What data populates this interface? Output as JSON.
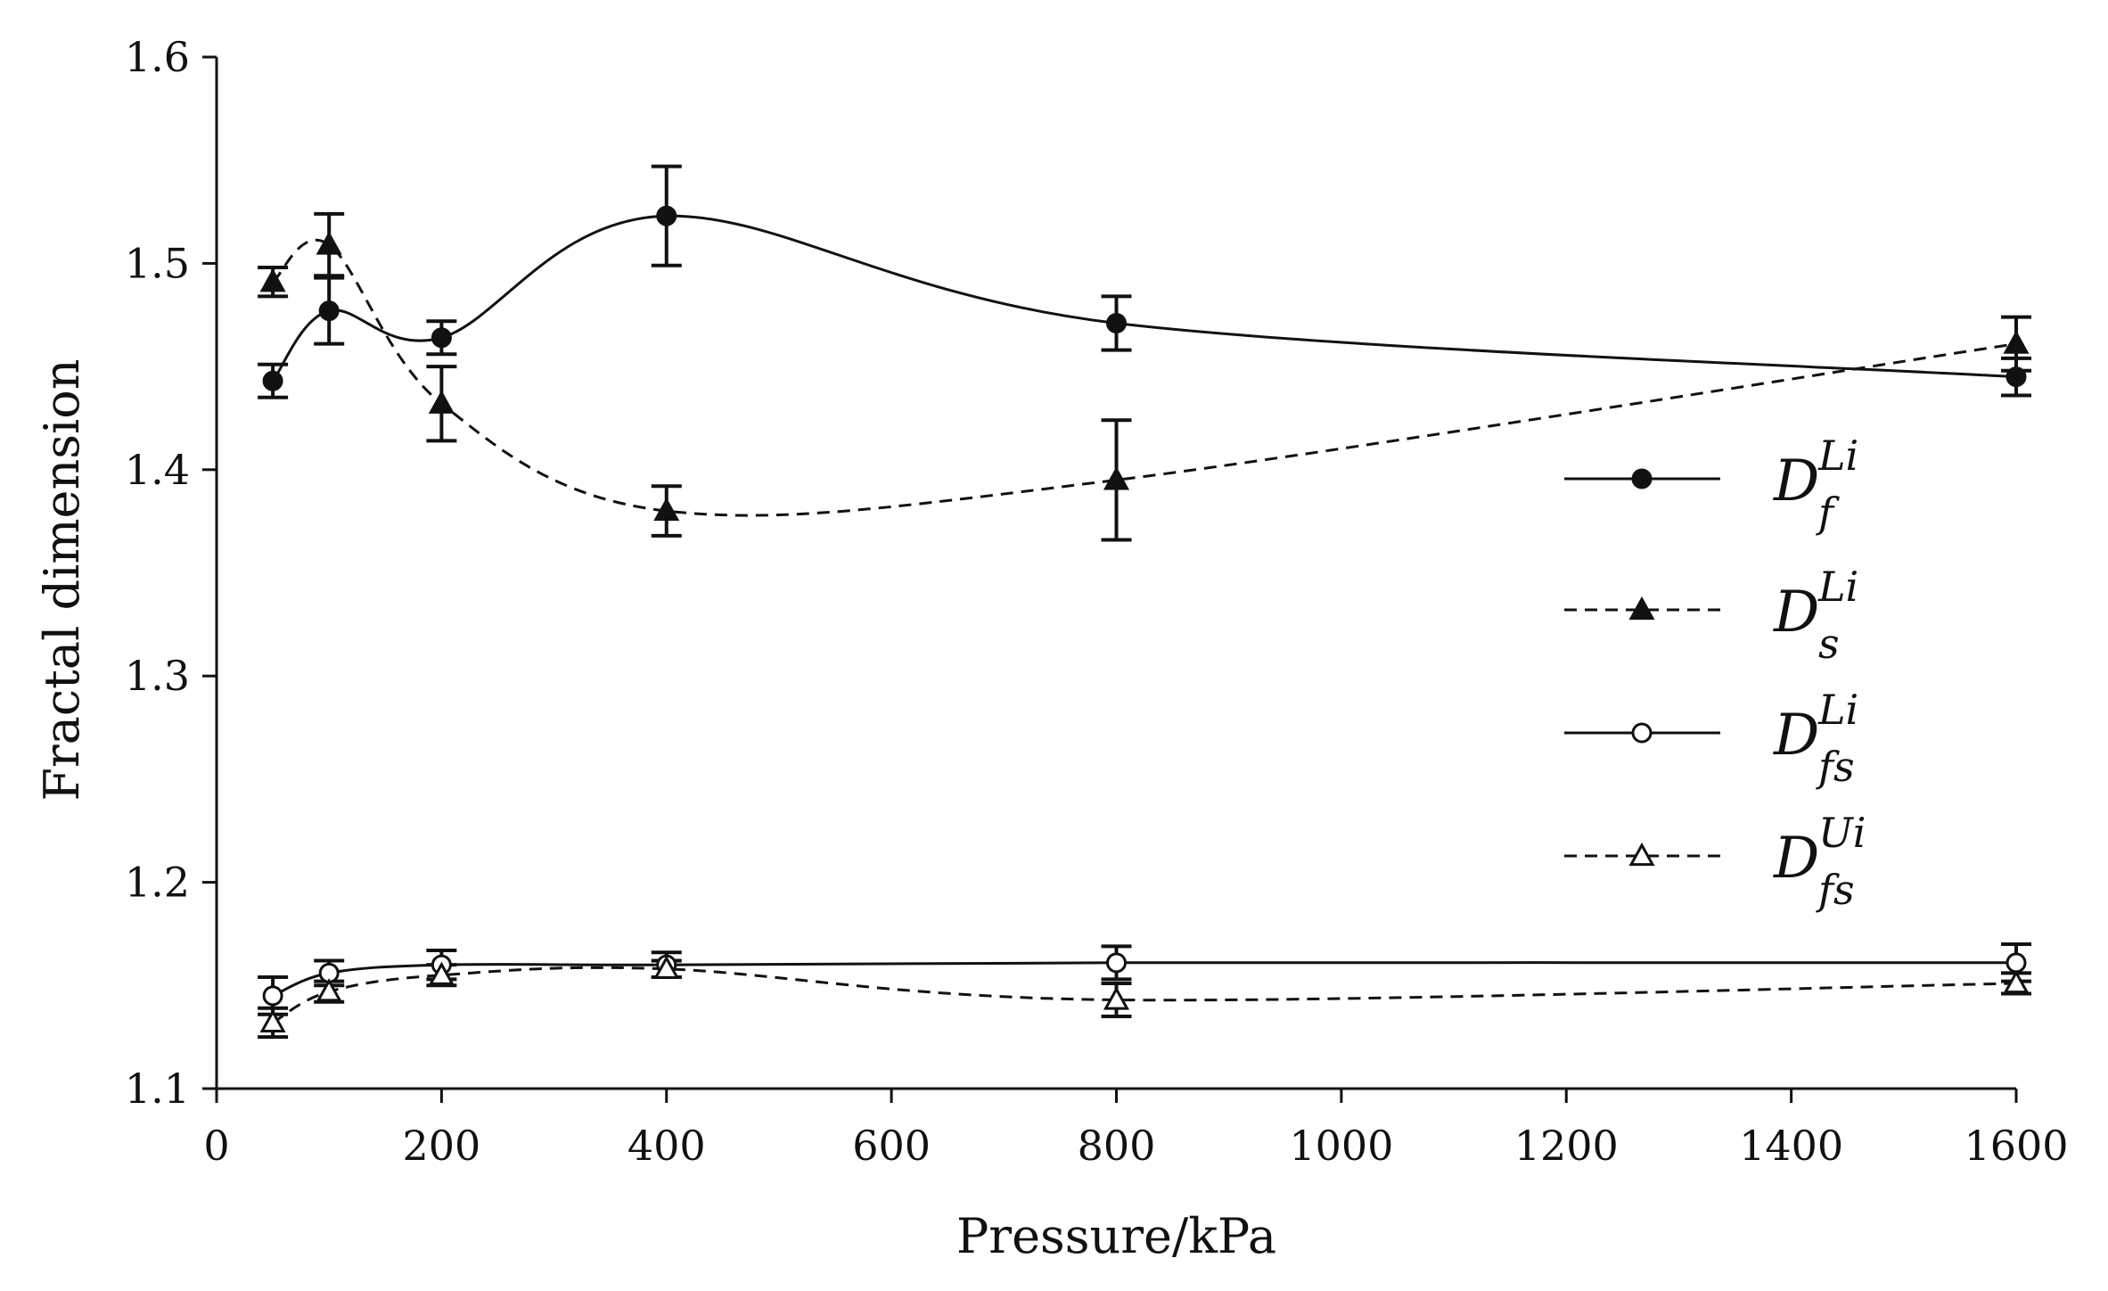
{
  "chart_data": {
    "type": "line",
    "title": "",
    "xlabel": "Pressure/kPa",
    "ylabel": "Fractal dimension",
    "xlim": [
      0,
      1600
    ],
    "ylim": [
      1.1,
      1.6
    ],
    "xticks": [
      0,
      200,
      400,
      600,
      800,
      1000,
      1200,
      1400,
      1600
    ],
    "xtick_labels": [
      "0",
      "200",
      "400",
      "600",
      "800",
      "1000",
      "1200",
      "1400",
      "1600"
    ],
    "yticks": [
      1.1,
      1.2,
      1.3,
      1.4,
      1.5,
      1.6
    ],
    "ytick_labels": [
      "1.1",
      "1.2",
      "1.3",
      "1.4",
      "1.5",
      "1.6"
    ],
    "grid": false,
    "legend_position": "right",
    "series": [
      {
        "id": "df_li",
        "legend": {
          "base": "D",
          "sup": "Li",
          "sub": "f"
        },
        "line": "solid",
        "marker": "circle-filled",
        "x": [
          50,
          100,
          200,
          400,
          800,
          1600
        ],
        "y": [
          1.443,
          1.477,
          1.464,
          1.523,
          1.471,
          1.445
        ],
        "err": [
          0.008,
          0.016,
          0.008,
          0.024,
          0.013,
          0.009
        ]
      },
      {
        "id": "ds_li",
        "legend": {
          "base": "D",
          "sup": "Li",
          "sub": "s"
        },
        "line": "dashed",
        "marker": "triangle-filled",
        "x": [
          50,
          100,
          200,
          400,
          800,
          1600
        ],
        "y": [
          1.491,
          1.509,
          1.432,
          1.38,
          1.395,
          1.461
        ],
        "err": [
          0.007,
          0.015,
          0.018,
          0.012,
          0.029,
          0.013
        ]
      },
      {
        "id": "dfs_li",
        "legend": {
          "base": "D",
          "sup": "Li",
          "sub": "fs"
        },
        "line": "solid",
        "marker": "circle-open",
        "x": [
          50,
          100,
          200,
          400,
          800,
          1600
        ],
        "y": [
          1.145,
          1.156,
          1.16,
          1.16,
          1.161,
          1.161
        ],
        "err": [
          0.009,
          0.006,
          0.007,
          0.006,
          0.008,
          0.009
        ]
      },
      {
        "id": "dfs_ui",
        "legend": {
          "base": "D",
          "sup": "Ui",
          "sub": "fs"
        },
        "line": "dashed",
        "marker": "triangle-open",
        "x": [
          50,
          100,
          200,
          400,
          800,
          1600
        ],
        "y": [
          1.132,
          1.147,
          1.155,
          1.158,
          1.143,
          1.151
        ],
        "err": [
          0.007,
          0.005,
          0.005,
          0.004,
          0.008,
          0.005
        ]
      }
    ]
  }
}
